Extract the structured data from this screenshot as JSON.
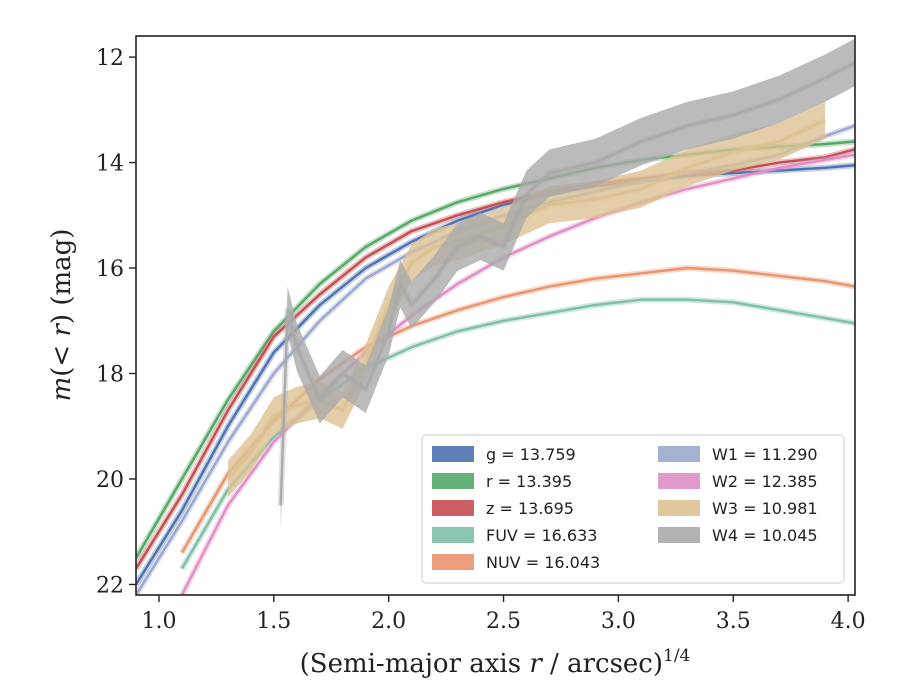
{
  "chart_data": {
    "type": "line",
    "xlabel": "(Semi-major axis r / arcsec)^1/4",
    "ylabel": "m(< r) (mag)",
    "xlim": [
      0.9,
      4.03
    ],
    "ylim": [
      22.2,
      11.6
    ],
    "y_inverted": true,
    "x_ticks": [
      "1.0",
      "1.5",
      "2.0",
      "2.5",
      "3.0",
      "3.5",
      "4.0"
    ],
    "y_ticks": [
      "12",
      "14",
      "16",
      "18",
      "20",
      "22"
    ],
    "legend_location": "lower-right",
    "grid": false,
    "series": [
      {
        "name": "g = 13.759",
        "color": "#4c72b0",
        "x": [
          0.9,
          1.1,
          1.3,
          1.5,
          1.7,
          1.9,
          2.1,
          2.3,
          2.5,
          2.7,
          2.9,
          3.1,
          3.3,
          3.5,
          3.7,
          3.9,
          4.03
        ],
        "y": [
          22.0,
          20.6,
          19.0,
          17.6,
          16.7,
          16.0,
          15.5,
          15.1,
          14.8,
          14.6,
          14.45,
          14.35,
          14.25,
          14.2,
          14.15,
          14.1,
          14.05
        ]
      },
      {
        "name": "r = 13.395",
        "color": "#55a868",
        "x": [
          0.9,
          1.1,
          1.3,
          1.5,
          1.7,
          1.9,
          2.1,
          2.3,
          2.5,
          2.7,
          2.9,
          3.1,
          3.3,
          3.5,
          3.7,
          3.9,
          4.03
        ],
        "y": [
          21.5,
          20.0,
          18.5,
          17.2,
          16.3,
          15.6,
          15.1,
          14.75,
          14.5,
          14.3,
          14.1,
          13.95,
          13.85,
          13.75,
          13.7,
          13.65,
          13.6
        ]
      },
      {
        "name": "z = 13.695",
        "color": "#c44e52",
        "x": [
          0.9,
          1.1,
          1.3,
          1.5,
          1.7,
          1.9,
          2.1,
          2.3,
          2.5,
          2.7,
          2.9,
          3.1,
          3.3,
          3.5,
          3.7,
          3.9,
          4.03
        ],
        "y": [
          21.7,
          20.3,
          18.7,
          17.3,
          16.5,
          15.8,
          15.3,
          15.0,
          14.75,
          14.55,
          14.4,
          14.3,
          14.2,
          14.15,
          14.0,
          13.9,
          13.75
        ]
      },
      {
        "name": "FUV = 16.633",
        "color": "#7fbfa9",
        "x": [
          1.1,
          1.3,
          1.5,
          1.7,
          1.9,
          2.1,
          2.3,
          2.5,
          2.7,
          2.9,
          3.1,
          3.3,
          3.5,
          3.7,
          3.9,
          4.03
        ],
        "y": [
          21.7,
          20.2,
          19.2,
          18.5,
          17.9,
          17.5,
          17.2,
          17.0,
          16.85,
          16.7,
          16.6,
          16.6,
          16.65,
          16.8,
          16.95,
          17.05
        ]
      },
      {
        "name": "NUV = 16.043",
        "color": "#e8946f",
        "x": [
          1.1,
          1.3,
          1.5,
          1.7,
          1.9,
          2.1,
          2.3,
          2.5,
          2.7,
          2.9,
          3.1,
          3.3,
          3.5,
          3.7,
          3.9,
          4.03
        ],
        "y": [
          21.4,
          19.9,
          18.9,
          18.1,
          17.5,
          17.1,
          16.8,
          16.55,
          16.35,
          16.2,
          16.1,
          16.0,
          16.05,
          16.15,
          16.25,
          16.35
        ]
      },
      {
        "name": "W1 = 11.290",
        "color": "#9aa8cc",
        "x": [
          0.9,
          1.1,
          1.3,
          1.5,
          1.7,
          1.9,
          2.1,
          2.3,
          2.5,
          2.7,
          2.9,
          3.1,
          3.3,
          3.5,
          3.7,
          3.9,
          4.03
        ],
        "y": [
          22.2,
          20.8,
          19.3,
          18.0,
          17.0,
          16.2,
          15.7,
          15.3,
          15.0,
          14.75,
          14.55,
          14.35,
          14.2,
          14.05,
          13.85,
          13.5,
          13.3
        ]
      },
      {
        "name": "W2 = 12.385",
        "color": "#dd8fc6",
        "x": [
          1.1,
          1.3,
          1.5,
          1.7,
          1.9,
          2.1,
          2.3,
          2.5,
          2.7,
          2.9,
          3.1,
          3.3,
          3.5,
          3.7,
          3.9,
          4.03
        ],
        "y": [
          22.2,
          20.5,
          19.3,
          18.4,
          17.6,
          16.9,
          16.3,
          15.8,
          15.4,
          15.05,
          14.75,
          14.5,
          14.3,
          14.1,
          13.95,
          13.85
        ]
      },
      {
        "name": "W3 = 10.981",
        "color": "#dcc293",
        "x": [
          1.3,
          1.4,
          1.5,
          1.6,
          1.7,
          1.8,
          1.9,
          2.0,
          2.1,
          2.2,
          2.3,
          2.5,
          2.7,
          2.9,
          3.1,
          3.3,
          3.5,
          3.7,
          3.9
        ],
        "y": [
          20.0,
          19.5,
          18.8,
          18.6,
          18.5,
          18.7,
          17.8,
          16.7,
          15.9,
          15.6,
          15.5,
          15.2,
          14.8,
          14.7,
          14.5,
          14.1,
          13.8,
          13.6,
          13.2
        ]
      },
      {
        "name": "W4 = 10.045",
        "color": "#aaaaaa",
        "x": [
          1.53,
          1.56,
          1.6,
          1.7,
          1.8,
          1.9,
          2.0,
          2.05,
          2.1,
          2.2,
          2.3,
          2.4,
          2.5,
          2.6,
          2.7,
          2.9,
          3.1,
          3.3,
          3.5,
          3.7,
          3.9,
          4.03
        ],
        "y": [
          20.5,
          16.8,
          17.5,
          18.5,
          18.0,
          18.3,
          17.2,
          16.3,
          16.7,
          16.2,
          15.6,
          15.4,
          15.6,
          14.6,
          14.2,
          14.0,
          13.6,
          13.3,
          13.1,
          12.8,
          12.4,
          12.1
        ]
      }
    ]
  }
}
